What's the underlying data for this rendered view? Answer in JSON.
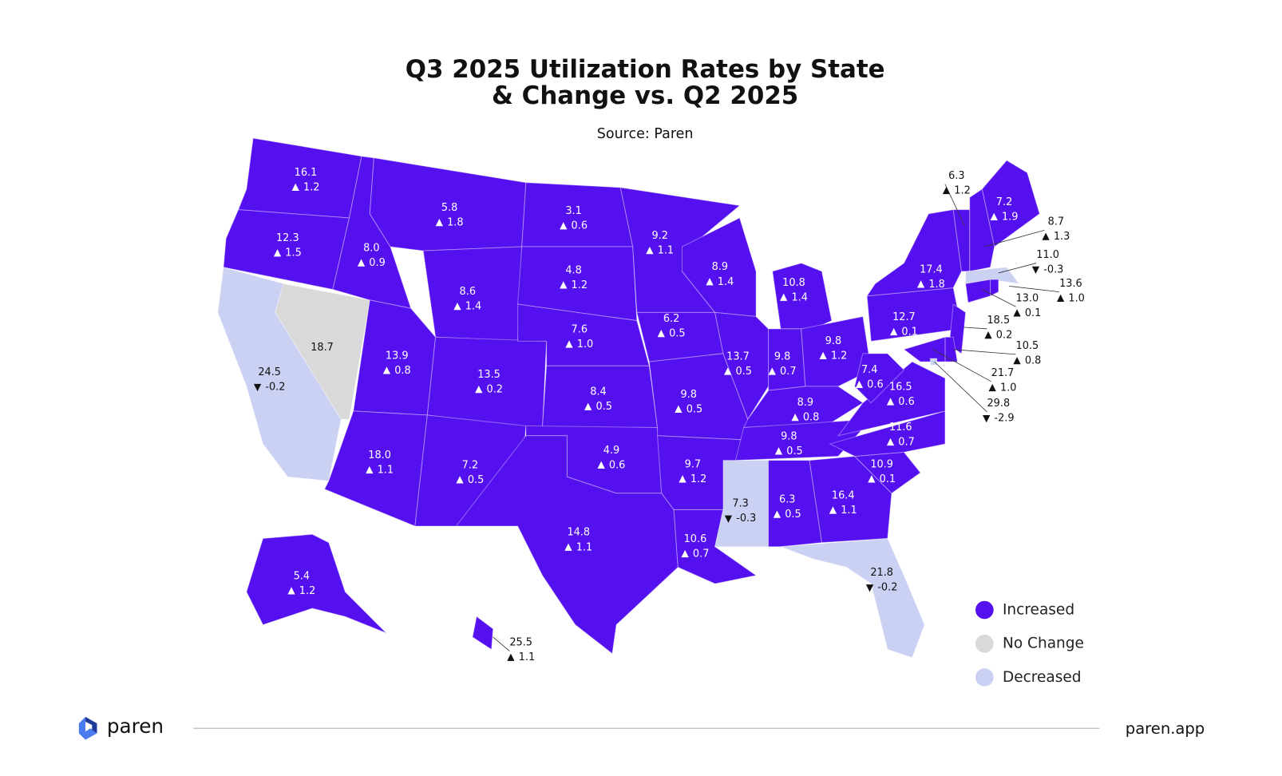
{
  "title": [
    "Q3 2025 Utilization Rates by State",
    "& Change vs. Q2 2025"
  ],
  "source": "Source: Paren",
  "legend": [
    {
      "label": "Increased",
      "color": "#5510f0"
    },
    {
      "label": "No Change",
      "color": "#d9d9d9"
    },
    {
      "label": "Decreased",
      "color": "#cbd1f3"
    }
  ],
  "states": [
    {
      "value": "16.1",
      "change": "1.2"
    },
    {
      "value": "12.3",
      "change": "1.5"
    },
    {
      "value": "24.5",
      "change": "-0.2"
    },
    {
      "value": "18.7"
    },
    {
      "value": "8.0",
      "change": "0.9"
    },
    {
      "value": "5.8",
      "change": "1.8"
    },
    {
      "value": "8.6",
      "change": "1.4"
    },
    {
      "value": "13.9",
      "change": "0.8"
    },
    {
      "value": "13.5",
      "change": "0.2"
    },
    {
      "value": "18.0",
      "change": "1.1"
    },
    {
      "value": "7.2",
      "change": "0.5"
    },
    {
      "value": "3.1",
      "change": "0.6"
    },
    {
      "value": "4.8",
      "change": "1.2"
    },
    {
      "value": "7.6",
      "change": "1.0"
    },
    {
      "value": "8.4",
      "change": "0.5"
    },
    {
      "value": "4.9",
      "change": "0.6"
    },
    {
      "value": "14.8",
      "change": "1.1"
    },
    {
      "value": "9.2",
      "change": "1.1"
    },
    {
      "value": "6.2",
      "change": "0.5"
    },
    {
      "value": "9.8",
      "change": "0.5"
    },
    {
      "value": "9.7",
      "change": "1.2"
    },
    {
      "value": "10.6",
      "change": "0.7"
    },
    {
      "value": "8.9",
      "change": "1.4"
    },
    {
      "value": "10.8",
      "change": "1.4"
    },
    {
      "value": "13.7",
      "change": "0.5"
    },
    {
      "value": "9.8",
      "change": "0.7"
    },
    {
      "value": "9.8",
      "change": "1.2"
    },
    {
      "value": "8.9",
      "change": "0.8"
    },
    {
      "value": "9.8",
      "change": "0.5"
    },
    {
      "value": "7.3",
      "change": "-0.3"
    },
    {
      "value": "6.3",
      "change": "0.5"
    },
    {
      "value": "16.4",
      "change": "1.1"
    },
    {
      "value": "21.8",
      "change": "-0.2"
    },
    {
      "value": "10.9",
      "change": "0.1"
    },
    {
      "value": "11.6",
      "change": "0.7"
    },
    {
      "value": "16.5",
      "change": "0.6"
    },
    {
      "value": "7.4",
      "change": "0.6"
    },
    {
      "value": "12.7",
      "change": "0.1"
    },
    {
      "value": "17.4",
      "change": "1.8"
    },
    {
      "value": "6.3",
      "change": "1.2"
    },
    {
      "value": "7.2",
      "change": "1.9"
    },
    {
      "value": "8.7",
      "change": "1.3"
    },
    {
      "value": "11.0",
      "change": "-0.3"
    },
    {
      "value": "13.6",
      "change": "1.0"
    },
    {
      "value": "13.0",
      "change": "0.1"
    },
    {
      "value": "18.5",
      "change": "0.2"
    },
    {
      "value": "10.5",
      "change": "0.8"
    },
    {
      "value": "21.7",
      "change": "1.0"
    },
    {
      "value": "29.8",
      "change": "-2.9"
    },
    {
      "value": "5.4",
      "change": "1.2"
    },
    {
      "value": "25.5",
      "change": "1.1"
    }
  ],
  "footer": {
    "brand": "paren",
    "url": "paren.app"
  }
}
